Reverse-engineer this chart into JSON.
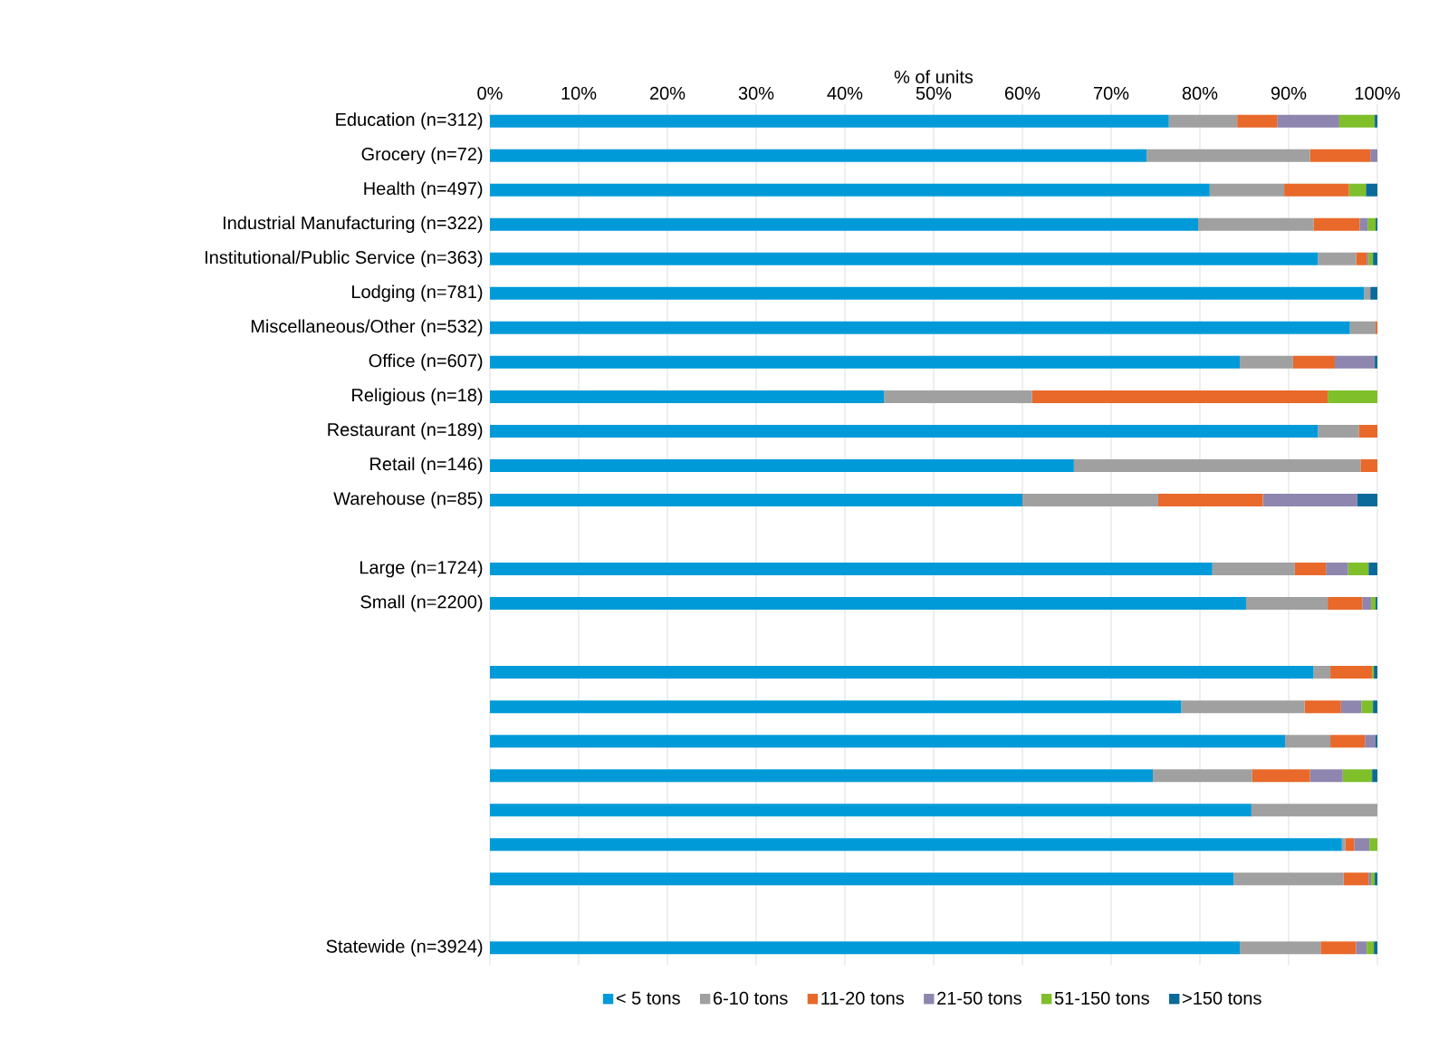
{
  "chart_data": {
    "type": "bar",
    "orientation": "horizontal",
    "stacked": true,
    "xlabel": "% of units",
    "grid": "x",
    "legend": "bottom",
    "categories": [
      "Education (n=312)",
      "Grocery (n=72)",
      "Health (n=497)",
      "Industrial Manufacturing (n=322)",
      "Institutional/Public Service (n=363)",
      "Lodging (n=781)",
      "Miscellaneous/Other (n=532)",
      "Office (n=607)",
      "Religious (n=18)",
      "Restaurant (n=189)",
      "Retail (n=146)",
      "Warehouse (n=85)",
      null,
      "Large (n=1724)",
      "Small (n=2200)",
      null,
      null,
      null,
      null,
      null,
      null,
      null,
      null,
      null,
      "Statewide (n=3924)"
    ],
    "xlim": [
      0,
      100
    ],
    "xticks": [
      {
        "value": 0,
        "label": "0%"
      },
      {
        "value": 10,
        "label": "10%"
      },
      {
        "value": 20,
        "label": "20%"
      },
      {
        "value": 30,
        "label": "30%"
      },
      {
        "value": 40,
        "label": "40%"
      },
      {
        "value": 50,
        "label": "50%"
      },
      {
        "value": 60,
        "label": "60%"
      },
      {
        "value": 70,
        "label": "70%"
      },
      {
        "value": 80,
        "label": "80%"
      },
      {
        "value": 90,
        "label": "90%"
      },
      {
        "value": 100,
        "label": "100%"
      }
    ],
    "series": [
      {
        "name": "< 5 tons",
        "color": "#009ad9",
        "values": [
          76.5,
          74.0,
          81.1,
          79.8,
          93.3,
          98.5,
          96.9,
          84.5,
          44.4,
          93.3,
          65.8,
          60.0,
          null,
          81.4,
          85.2,
          null,
          92.8,
          77.9,
          89.6,
          74.7,
          85.8,
          96.0,
          83.8,
          null,
          84.5
        ]
      },
      {
        "name": "6-10 tons",
        "color": "#a0a0a0",
        "values": [
          7.7,
          18.4,
          8.4,
          13.0,
          4.3,
          0.7,
          2.9,
          6.0,
          16.7,
          4.6,
          32.3,
          15.3,
          null,
          9.3,
          9.2,
          null,
          1.9,
          13.9,
          5.1,
          11.2,
          14.2,
          0.4,
          12.4,
          null,
          9.1
        ]
      },
      {
        "name": "11-20 tons",
        "color": "#e8692a",
        "values": [
          4.5,
          6.8,
          7.3,
          5.2,
          1.2,
          0,
          0.2,
          4.7,
          33.3,
          2.1,
          1.9,
          11.8,
          null,
          3.5,
          3.9,
          null,
          4.7,
          4.1,
          3.9,
          6.5,
          0,
          1.0,
          2.8,
          null,
          4.0
        ]
      },
      {
        "name": "21-50 tons",
        "color": "#8e86ae",
        "values": [
          7.0,
          0.8,
          0,
          0.9,
          0.2,
          0,
          0,
          4.5,
          0,
          0,
          0,
          10.6,
          null,
          2.5,
          1.0,
          null,
          0,
          2.3,
          1.2,
          3.7,
          0,
          1.7,
          0.3,
          null,
          1.2
        ]
      },
      {
        "name": "51-150 tons",
        "color": "#7fbf2a",
        "values": [
          4.0,
          0,
          1.9,
          0.9,
          0.5,
          0,
          0,
          0,
          5.6,
          0,
          0,
          0,
          null,
          2.3,
          0.5,
          null,
          0.2,
          1.3,
          0,
          3.3,
          0,
          0.9,
          0.4,
          null,
          0.8
        ]
      },
      {
        "name": ">150 tons",
        "color": "#0b6a9a",
        "values": [
          0.3,
          0,
          1.3,
          0.2,
          0.5,
          0.8,
          0,
          0.3,
          0,
          0,
          0,
          2.4,
          null,
          1.0,
          0.2,
          null,
          0.4,
          0.5,
          0.2,
          0.6,
          0,
          0,
          0.3,
          null,
          0.4
        ]
      }
    ]
  }
}
